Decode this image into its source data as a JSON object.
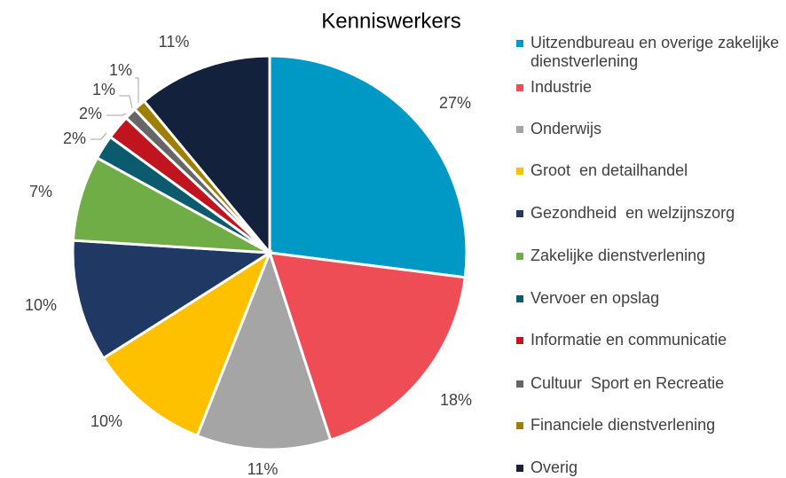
{
  "chart_data": {
    "type": "pie",
    "title": "Kenniswerkers",
    "categories": [
      "Uitzendbureau en overige zakelijke dienstverlening",
      "Industrie",
      "Onderwijs",
      "Groot  en detailhandel",
      "Gezondheid  en welzijnszorg",
      "Zakelijke dienstverlening",
      "Vervoer en opslag",
      "Informatie en communicatie",
      "Cultuur  Sport en Recreatie",
      "Financiele dienstverlening",
      "Overig"
    ],
    "values": [
      27,
      18,
      11,
      10,
      10,
      7,
      2,
      2,
      1,
      1,
      11
    ],
    "value_labels": [
      "27%",
      "18%",
      "11%",
      "10%",
      "10%",
      "7%",
      "2%",
      "2%",
      "1%",
      "1%",
      "11%"
    ],
    "colors": [
      "#0099c6",
      "#ee4d55",
      "#a5a5a5",
      "#ffc000",
      "#203864",
      "#70ad47",
      "#0b5a6e",
      "#c0141f",
      "#666666",
      "#a07e00",
      "#14213d"
    ],
    "legend": "right"
  }
}
